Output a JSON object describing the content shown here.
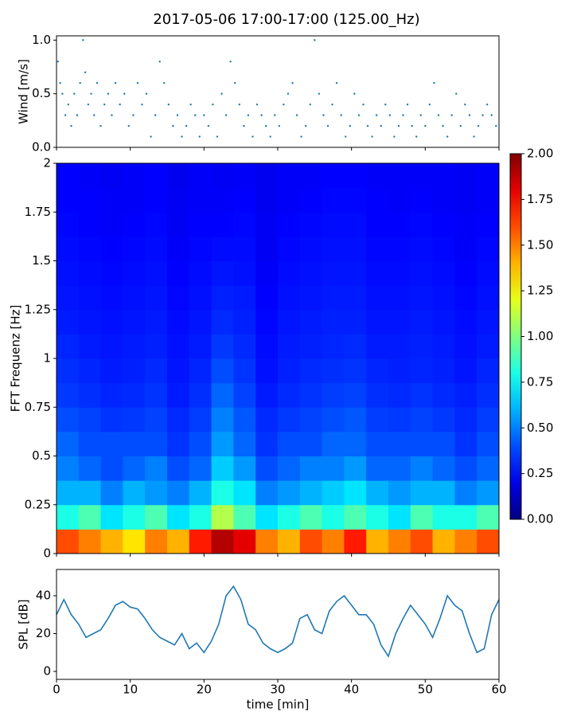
{
  "title": "2017-05-06 17:00-17:00 (125.00_Hz)",
  "chart_data": [
    {
      "type": "scatter",
      "ylabel": "Wind [m/s]",
      "color": "#1f77b4",
      "xlim": [
        0,
        60
      ],
      "ylim": [
        0,
        1.04
      ],
      "xticks": [
        0,
        10,
        20,
        30,
        40,
        50,
        60
      ],
      "yticks": [
        {
          "value": 0,
          "label": "0.0"
        },
        {
          "value": 0.5,
          "label": "0.5"
        },
        {
          "value": 1,
          "label": "1.0"
        }
      ],
      "x": [
        0.2,
        0.5,
        0.8,
        1.2,
        1.6,
        2.0,
        2.4,
        2.8,
        3.2,
        3.6,
        3.9,
        4.3,
        4.7,
        5.1,
        5.5,
        6.0,
        6.5,
        7.0,
        7.5,
        8.0,
        8.6,
        9.2,
        9.8,
        10.4,
        11.0,
        11.6,
        12.2,
        12.8,
        13.4,
        14.0,
        14.6,
        15.2,
        15.8,
        16.4,
        17.0,
        17.6,
        18.2,
        18.8,
        19.4,
        20.0,
        20.6,
        21.2,
        21.8,
        22.4,
        23.0,
        23.6,
        24.2,
        24.8,
        25.4,
        26.0,
        26.6,
        27.2,
        27.8,
        28.4,
        29.0,
        29.6,
        30.2,
        30.8,
        31.4,
        32.0,
        32.6,
        33.2,
        33.8,
        34.4,
        35.0,
        35.6,
        36.2,
        36.8,
        37.4,
        38.0,
        38.6,
        39.2,
        39.8,
        40.4,
        41.0,
        41.6,
        42.2,
        42.8,
        43.4,
        44.0,
        44.6,
        45.2,
        45.8,
        46.4,
        47.0,
        47.6,
        48.2,
        48.8,
        49.4,
        50.0,
        50.6,
        51.2,
        51.8,
        52.4,
        53.0,
        53.6,
        54.2,
        54.8,
        55.4,
        56.0,
        56.6,
        57.2,
        57.8,
        58.4,
        59.0,
        59.6
      ],
      "values": [
        0.8,
        0.6,
        0.5,
        0.3,
        0.4,
        0.2,
        0.5,
        0.3,
        0.6,
        1.0,
        0.7,
        0.4,
        0.5,
        0.3,
        0.6,
        0.2,
        0.4,
        0.5,
        0.3,
        0.6,
        0.4,
        0.5,
        0.2,
        0.3,
        0.6,
        0.4,
        0.5,
        0.1,
        0.3,
        0.8,
        0.6,
        0.4,
        0.2,
        0.3,
        0.1,
        0.2,
        0.4,
        0.3,
        0.1,
        0.3,
        0.2,
        0.4,
        0.1,
        0.5,
        0.3,
        0.8,
        0.6,
        0.4,
        0.2,
        0.3,
        0.1,
        0.4,
        0.3,
        0.2,
        0.1,
        0.3,
        0.2,
        0.4,
        0.5,
        0.6,
        0.3,
        0.1,
        0.2,
        0.4,
        1.0,
        0.5,
        0.3,
        0.2,
        0.4,
        0.6,
        0.3,
        0.1,
        0.2,
        0.5,
        0.3,
        0.4,
        0.2,
        0.1,
        0.3,
        0.2,
        0.4,
        0.3,
        0.1,
        0.2,
        0.3,
        0.4,
        0.2,
        0.1,
        0.3,
        0.2,
        0.4,
        0.6,
        0.3,
        0.2,
        0.1,
        0.3,
        0.5,
        0.2,
        0.4,
        0.3,
        0.1,
        0.2,
        0.3,
        0.4,
        0.3,
        0.2
      ]
    },
    {
      "type": "heatmap",
      "ylabel": "FFT Frequenz [Hz]",
      "colormap": "jet",
      "xlim": [
        0,
        60
      ],
      "ylim": [
        0,
        2
      ],
      "xticks": [
        0,
        10,
        20,
        30,
        40,
        50,
        60
      ],
      "yticks": [
        0,
        0.25,
        0.5,
        0.75,
        1,
        1.25,
        1.5,
        1.75,
        2
      ],
      "clim": [
        0,
        2
      ],
      "cticks": [
        {
          "value": 0,
          "label": "0.00"
        },
        {
          "value": 0.25,
          "label": "0.25"
        },
        {
          "value": 0.5,
          "label": "0.50"
        },
        {
          "value": 0.75,
          "label": "0.75"
        },
        {
          "value": 1,
          "label": "1.00"
        },
        {
          "value": 1.25,
          "label": "1.25"
        },
        {
          "value": 1.5,
          "label": "1.50"
        },
        {
          "value": 1.75,
          "label": "1.75"
        },
        {
          "value": 2,
          "label": "2.00"
        }
      ],
      "values": [
        [
          1.6,
          1.5,
          1.4,
          1.3,
          1.5,
          1.4,
          1.7,
          1.9,
          1.8,
          1.5,
          1.4,
          1.6,
          1.5,
          1.7,
          1.4,
          1.5,
          1.6,
          1.4,
          1.5,
          1.6
        ],
        [
          0.8,
          0.9,
          0.7,
          0.8,
          0.9,
          0.7,
          0.8,
          1.1,
          0.9,
          0.7,
          0.8,
          0.9,
          0.8,
          0.9,
          0.8,
          0.7,
          0.9,
          0.8,
          0.8,
          0.9
        ],
        [
          0.6,
          0.6,
          0.5,
          0.6,
          0.55,
          0.5,
          0.6,
          0.8,
          0.7,
          0.5,
          0.55,
          0.6,
          0.65,
          0.7,
          0.6,
          0.55,
          0.6,
          0.6,
          0.5,
          0.55
        ],
        [
          0.5,
          0.45,
          0.4,
          0.45,
          0.5,
          0.4,
          0.45,
          0.65,
          0.55,
          0.4,
          0.45,
          0.5,
          0.5,
          0.55,
          0.45,
          0.45,
          0.5,
          0.45,
          0.4,
          0.45
        ],
        [
          0.45,
          0.4,
          0.4,
          0.4,
          0.4,
          0.35,
          0.4,
          0.55,
          0.45,
          0.35,
          0.4,
          0.4,
          0.45,
          0.45,
          0.4,
          0.4,
          0.4,
          0.4,
          0.35,
          0.4
        ],
        [
          0.4,
          0.38,
          0.35,
          0.36,
          0.38,
          0.33,
          0.37,
          0.5,
          0.42,
          0.33,
          0.36,
          0.38,
          0.4,
          0.42,
          0.37,
          0.36,
          0.38,
          0.36,
          0.33,
          0.37
        ],
        [
          0.36,
          0.34,
          0.32,
          0.33,
          0.35,
          0.3,
          0.34,
          0.45,
          0.38,
          0.3,
          0.33,
          0.35,
          0.37,
          0.38,
          0.34,
          0.33,
          0.35,
          0.33,
          0.31,
          0.34
        ],
        [
          0.34,
          0.32,
          0.3,
          0.31,
          0.33,
          0.29,
          0.32,
          0.4,
          0.35,
          0.28,
          0.31,
          0.33,
          0.34,
          0.35,
          0.32,
          0.31,
          0.32,
          0.31,
          0.29,
          0.32
        ],
        [
          0.32,
          0.3,
          0.29,
          0.3,
          0.31,
          0.28,
          0.3,
          0.36,
          0.33,
          0.27,
          0.3,
          0.31,
          0.32,
          0.33,
          0.3,
          0.3,
          0.31,
          0.3,
          0.28,
          0.3
        ],
        [
          0.3,
          0.29,
          0.28,
          0.29,
          0.3,
          0.27,
          0.29,
          0.33,
          0.31,
          0.26,
          0.29,
          0.3,
          0.31,
          0.31,
          0.29,
          0.29,
          0.3,
          0.29,
          0.27,
          0.29
        ],
        [
          0.29,
          0.28,
          0.27,
          0.28,
          0.29,
          0.26,
          0.28,
          0.31,
          0.3,
          0.25,
          0.28,
          0.29,
          0.3,
          0.3,
          0.28,
          0.28,
          0.29,
          0.28,
          0.26,
          0.28
        ],
        [
          0.28,
          0.27,
          0.26,
          0.27,
          0.28,
          0.25,
          0.27,
          0.29,
          0.28,
          0.24,
          0.27,
          0.28,
          0.29,
          0.29,
          0.27,
          0.27,
          0.28,
          0.27,
          0.25,
          0.27
        ],
        [
          0.27,
          0.26,
          0.25,
          0.26,
          0.27,
          0.24,
          0.26,
          0.27,
          0.27,
          0.23,
          0.26,
          0.27,
          0.28,
          0.28,
          0.26,
          0.26,
          0.27,
          0.26,
          0.24,
          0.26
        ],
        [
          0.26,
          0.25,
          0.24,
          0.25,
          0.26,
          0.23,
          0.25,
          0.25,
          0.26,
          0.23,
          0.25,
          0.26,
          0.27,
          0.27,
          0.25,
          0.25,
          0.26,
          0.25,
          0.24,
          0.25
        ],
        [
          0.25,
          0.25,
          0.24,
          0.24,
          0.25,
          0.23,
          0.24,
          0.24,
          0.25,
          0.22,
          0.24,
          0.25,
          0.26,
          0.26,
          0.25,
          0.24,
          0.25,
          0.24,
          0.23,
          0.24
        ],
        [
          0.25,
          0.24,
          0.23,
          0.24,
          0.25,
          0.22,
          0.24,
          0.23,
          0.24,
          0.22,
          0.24,
          0.24,
          0.25,
          0.25,
          0.24,
          0.24,
          0.24,
          0.24,
          0.23,
          0.24
        ]
      ]
    },
    {
      "type": "line",
      "ylabel": "SPL [dB]",
      "xlabel": "time [min]",
      "color": "#1f77b4",
      "xlim": [
        0,
        60
      ],
      "ylim": [
        -4.2,
        53.9
      ],
      "xticks": [
        0,
        10,
        20,
        30,
        40,
        50,
        60
      ],
      "yticks": [
        0,
        20,
        40
      ],
      "x": [
        0,
        1,
        2,
        3,
        4,
        5,
        6,
        7,
        8,
        9,
        10,
        11,
        12,
        13,
        14,
        15,
        16,
        17,
        18,
        19,
        20,
        21,
        22,
        23,
        24,
        25,
        26,
        27,
        28,
        29,
        30,
        31,
        32,
        33,
        34,
        35,
        36,
        37,
        38,
        39,
        40,
        41,
        42,
        43,
        44,
        45,
        46,
        47,
        48,
        49,
        50,
        51,
        52,
        53,
        54,
        55,
        56,
        57,
        58,
        59,
        60
      ],
      "values": [
        30,
        38,
        30,
        25,
        18,
        20,
        22,
        28,
        35,
        37,
        34,
        33,
        28,
        22,
        18,
        16,
        14,
        20,
        12,
        15,
        10,
        16,
        25,
        40,
        45,
        38,
        25,
        22,
        15,
        12,
        10,
        12,
        15,
        28,
        30,
        22,
        20,
        32,
        37,
        40,
        35,
        30,
        30,
        25,
        14,
        8,
        20,
        28,
        35,
        30,
        25,
        18,
        28,
        40,
        35,
        32,
        20,
        10,
        12,
        30,
        38
      ]
    }
  ]
}
